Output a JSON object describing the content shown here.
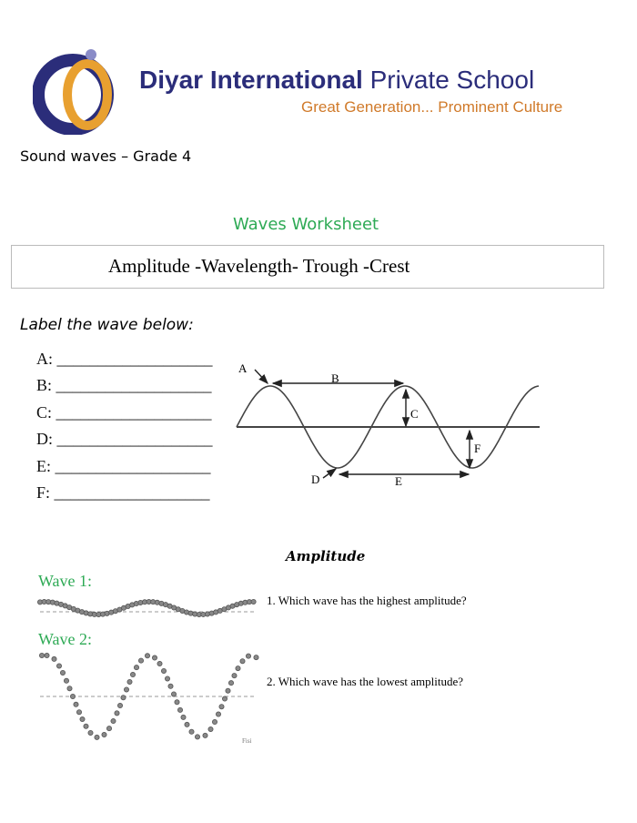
{
  "header": {
    "school_name_bold": "Diyar International",
    "school_name_rest": "Private School",
    "tagline": "Great Generation... Prominent Culture",
    "colors": {
      "brand_blue": "#2b2d7a",
      "brand_orange": "#e8a030",
      "accent_green": "#2eaa55"
    }
  },
  "subtitle": "Sound waves – Grade 4",
  "title": "Waves Worksheet",
  "word_bank": "Amplitude -Wavelength- Trough -Crest",
  "instruction": "Label the wave below:",
  "blanks": [
    {
      "label": "A:",
      "line": "___________________"
    },
    {
      "label": "B:",
      "line": "___________________"
    },
    {
      "label": "C:",
      "line": "___________________"
    },
    {
      "label": "D:",
      "line": "___________________"
    },
    {
      "label": "E:",
      "line": "___________________"
    },
    {
      "label": "F:",
      "line": "___________________"
    }
  ],
  "diagram_labels": {
    "a": "A",
    "b": "B",
    "c": "C",
    "d": "D",
    "e": "E",
    "f": "F"
  },
  "amplitude_section": {
    "heading": "Amplitude",
    "wave1_label": "Wave 1:",
    "wave2_label": "Wave 2:",
    "questions": [
      "1.  Which wave has the highest amplitude?",
      "2.  Which wave has the lowest amplitude?"
    ],
    "credit": "Fisi"
  }
}
